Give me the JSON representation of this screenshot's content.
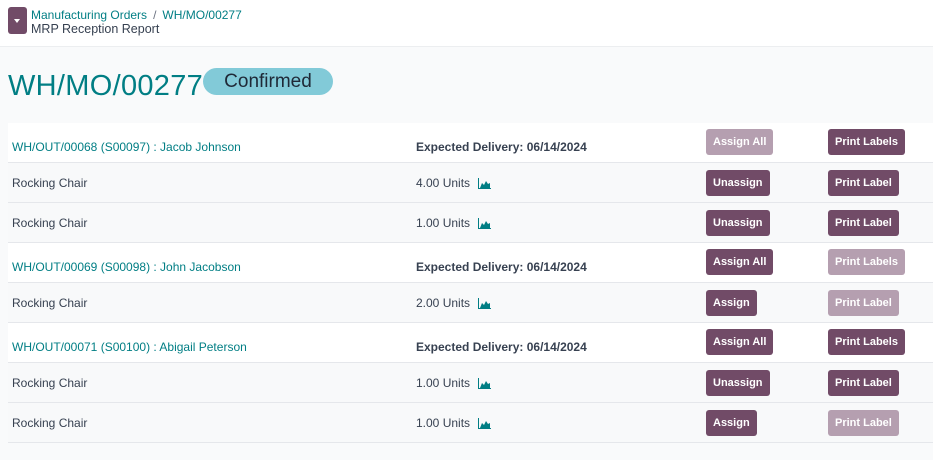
{
  "breadcrumb": {
    "parent": "Manufacturing Orders",
    "current": "WH/MO/00277",
    "sep": "/"
  },
  "page_subtitle": "MRP Reception Report",
  "title": "WH/MO/00277",
  "status": "Confirmed",
  "colors": {
    "primary": "#714b67",
    "disabled": "#b59fb0",
    "link": "#017e84",
    "badge": "#82cad8"
  },
  "groups": [
    {
      "name": "WH/OUT/00068 (S00097) : Jacob Johnson",
      "delivery": "Expected Delivery: 06/14/2024",
      "assign_all": {
        "label": "Assign All",
        "disabled": true
      },
      "print_labels": {
        "label": "Print Labels",
        "disabled": false
      },
      "lines": [
        {
          "product": "Rocking Chair",
          "qty": "4.00 Units",
          "icon": "forecast-chart-icon",
          "action": {
            "label": "Unassign",
            "disabled": false
          },
          "print": {
            "label": "Print Label",
            "disabled": false
          }
        },
        {
          "product": "Rocking Chair",
          "qty": "1.00 Units",
          "icon": "forecast-chart-icon",
          "action": {
            "label": "Unassign",
            "disabled": false
          },
          "print": {
            "label": "Print Label",
            "disabled": false
          }
        }
      ]
    },
    {
      "name": "WH/OUT/00069 (S00098) : John Jacobson",
      "delivery": "Expected Delivery: 06/14/2024",
      "assign_all": {
        "label": "Assign All",
        "disabled": false
      },
      "print_labels": {
        "label": "Print Labels",
        "disabled": true
      },
      "lines": [
        {
          "product": "Rocking Chair",
          "qty": "2.00 Units",
          "icon": "forecast-chart-icon",
          "action": {
            "label": "Assign",
            "disabled": false
          },
          "print": {
            "label": "Print Label",
            "disabled": true
          }
        }
      ]
    },
    {
      "name": "WH/OUT/00071 (S00100) : Abigail Peterson",
      "delivery": "Expected Delivery: 06/14/2024",
      "assign_all": {
        "label": "Assign All",
        "disabled": false
      },
      "print_labels": {
        "label": "Print Labels",
        "disabled": false
      },
      "lines": [
        {
          "product": "Rocking Chair",
          "qty": "1.00 Units",
          "icon": "forecast-chart-icon",
          "action": {
            "label": "Unassign",
            "disabled": false
          },
          "print": {
            "label": "Print Label",
            "disabled": false
          }
        },
        {
          "product": "Rocking Chair",
          "qty": "1.00 Units",
          "icon": "forecast-chart-icon",
          "action": {
            "label": "Assign",
            "disabled": false
          },
          "print": {
            "label": "Print Label",
            "disabled": true
          }
        }
      ]
    }
  ]
}
